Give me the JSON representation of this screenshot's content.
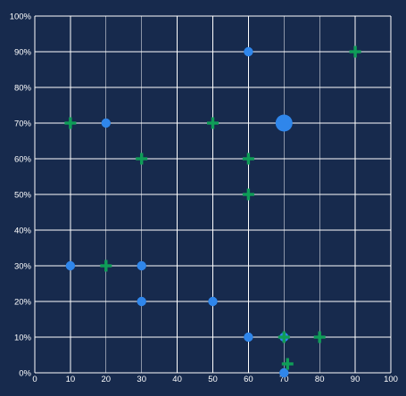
{
  "chart_data": {
    "type": "scatter",
    "x_ticks": [
      "0",
      "10",
      "20",
      "30",
      "40",
      "50",
      "60",
      "70",
      "80",
      "90",
      "100"
    ],
    "y_ticks": [
      "0%",
      "10%",
      "20%",
      "30%",
      "40%",
      "50%",
      "60%",
      "70%",
      "80%",
      "90%",
      "100%"
    ],
    "xlim": [
      0,
      100
    ],
    "ylim": [
      0,
      100
    ],
    "y_unit": "percent",
    "grid": true,
    "legend": "none",
    "colors": {
      "background": "#172a4d",
      "grid": "#ffffff",
      "circle_series": "#2f86eb",
      "plus_series": "#0f9d58",
      "text": "#ffffff"
    },
    "series": [
      {
        "marker": "circle",
        "color": "#2f86eb",
        "points": [
          {
            "x": 10,
            "y": 30,
            "size": 1
          },
          {
            "x": 20,
            "y": 70,
            "size": 1
          },
          {
            "x": 30,
            "y": 30,
            "size": 1
          },
          {
            "x": 30,
            "y": 20,
            "size": 1
          },
          {
            "x": 50,
            "y": 20,
            "size": 1
          },
          {
            "x": 60,
            "y": 90,
            "size": 1
          },
          {
            "x": 60,
            "y": 10,
            "size": 1
          },
          {
            "x": 70,
            "y": 70,
            "size": 2
          },
          {
            "x": 70,
            "y": 10,
            "size": 1
          },
          {
            "x": 70,
            "y": 0,
            "size": 1
          }
        ]
      },
      {
        "marker": "plus",
        "color": "#0f9d58",
        "points": [
          {
            "x": 10,
            "y": 70
          },
          {
            "x": 20,
            "y": 30
          },
          {
            "x": 30,
            "y": 60
          },
          {
            "x": 50,
            "y": 70
          },
          {
            "x": 60,
            "y": 60
          },
          {
            "x": 60,
            "y": 50
          },
          {
            "x": 70,
            "y": 10
          },
          {
            "x": 71,
            "y": 2.5
          },
          {
            "x": 80,
            "y": 10
          },
          {
            "x": 90,
            "y": 90
          }
        ]
      }
    ]
  }
}
